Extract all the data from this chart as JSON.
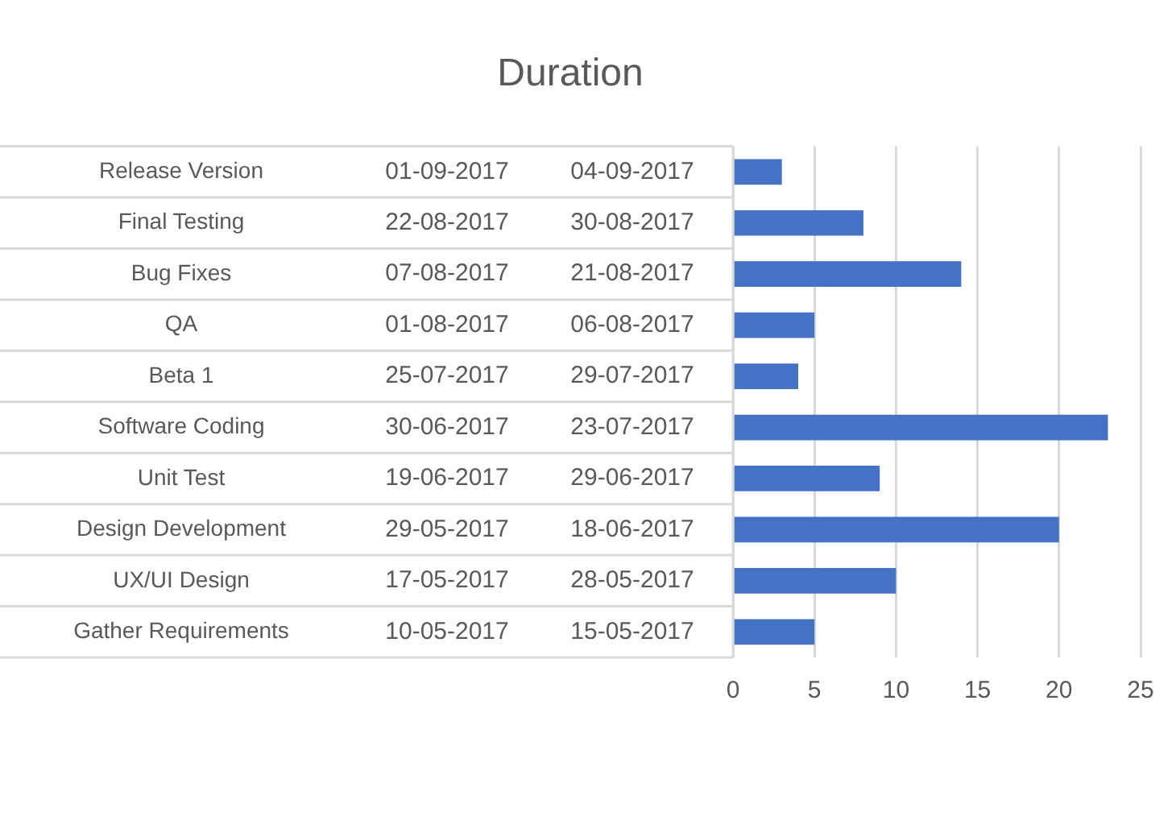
{
  "chart_data": {
    "type": "bar",
    "orientation": "horizontal",
    "title": "Duration",
    "categories": [
      "Release Version\n01-09-2017\n04-09-2017",
      "Final Testing\n22-08-2017\n30-08-2017",
      "Bug Fixes\n07-08-2017\n21-08-2017",
      "QA\n01-08-2017\n06-08-2017",
      "Beta 1\n25-07-2017\n29-07-2017",
      "Software Coding\n30-06-2017\n23-07-2017",
      "Unit Test\n19-06-2017\n29-06-2017",
      "Design Development\n29-05-2017\n18-06-2017",
      "UX/UI Design\n17-05-2017\n28-05-2017",
      "Gather Requirements\n10-05-2017\n15-05-2017"
    ],
    "values": [
      3,
      8,
      14,
      5,
      4,
      23,
      9,
      20,
      10,
      5
    ],
    "color": "#4472c4",
    "xlim": [
      0,
      25
    ],
    "xticks": [
      0,
      5,
      10,
      15,
      20,
      25
    ],
    "grid": "x"
  }
}
